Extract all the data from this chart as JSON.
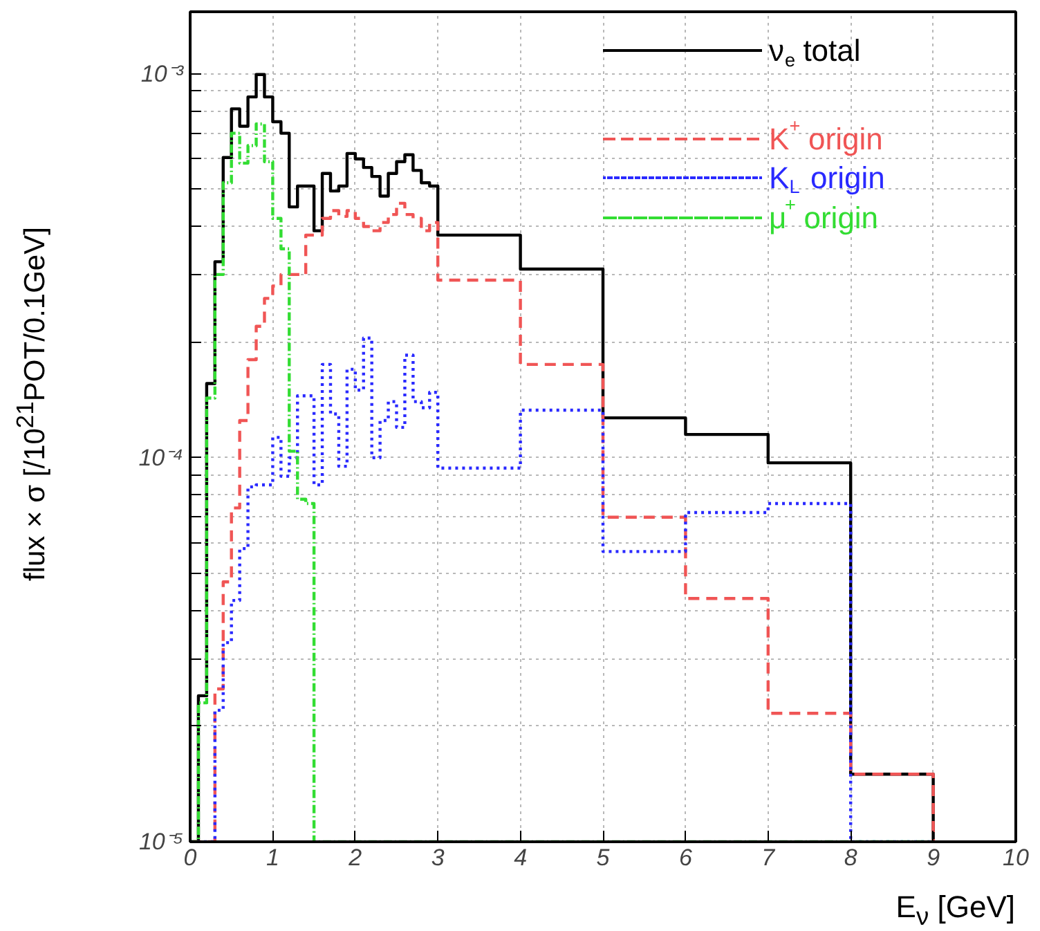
{
  "chart_data": {
    "type": "histogram",
    "xlabel": "E$_{ν}$ [GeV]",
    "ylabel": "flux × σ [/10$^{21}$POT/0.1GeV]",
    "bins": [
      0,
      0.1,
      0.2,
      0.3,
      0.4,
      0.5,
      0.6,
      0.7,
      0.8,
      0.9,
      1.0,
      1.1,
      1.2,
      1.3,
      1.4,
      1.5,
      1.6,
      1.7,
      1.8,
      1.9,
      2.0,
      2.1,
      2.2,
      2.3,
      2.4,
      2.5,
      2.6,
      2.7,
      2.8,
      2.9,
      3.0,
      4,
      5,
      6,
      7,
      8,
      9
    ],
    "series": [
      {
        "name": "ν$_{e}$ total",
        "color": "#000000",
        "line_style": "solid",
        "values": [
          null,
          2.4e-05,
          0.000156,
          0.000324,
          0.000605,
          0.00081,
          0.00073,
          0.00087,
          0.000995,
          0.00087,
          0.00075,
          0.0007,
          0.00045,
          0.00051,
          0.00051,
          0.00039,
          0.00055,
          0.000495,
          0.00051,
          0.00062,
          0.0006,
          0.00057,
          0.00054,
          0.00048,
          0.00055,
          0.00059,
          0.000615,
          0.00056,
          0.00052,
          0.00051,
          0.00038,
          0.00031,
          0.000127,
          0.000115,
          9.7e-05,
          1.5e-05
        ]
      },
      {
        "name": "K$^{+}$ origin",
        "color": "#f05555",
        "line_style": "dashed",
        "values": [
          null,
          null,
          null,
          2.5e-05,
          4.75e-05,
          7.4e-05,
          0.000125,
          0.00018,
          0.00022,
          0.00026,
          0.00028,
          0.0003,
          0.0003,
          0.0003,
          0.00038,
          0.00038,
          0.00042,
          0.00044,
          0.000425,
          0.00044,
          0.00042,
          0.0004,
          0.00039,
          0.00041,
          0.00043,
          0.00046,
          0.00043,
          0.00042,
          0.00039,
          0.00041,
          0.00029,
          0.000175,
          7e-05,
          4.3e-05,
          2.16e-05,
          1.5e-05
        ]
      },
      {
        "name": "K$_{L}$ origin",
        "color": "#2a2aff",
        "line_style": "dotted",
        "values": [
          null,
          null,
          null,
          2.2e-05,
          3.3e-05,
          4.25e-05,
          5.8e-05,
          8.4e-05,
          8.5e-05,
          8.5e-05,
          0.000113,
          8.95e-05,
          0.0001,
          0.000145,
          0.000145,
          8.5e-05,
          0.000175,
          0.00013,
          9.5e-05,
          0.00017,
          0.00015,
          0.000205,
          0.0001,
          0.000125,
          0.00014,
          0.00012,
          0.000185,
          0.00014,
          0.000135,
          0.000148,
          9.4e-05,
          0.000133,
          5.7e-05,
          7.2e-05,
          7.6e-05,
          null
        ]
      },
      {
        "name": "μ$^{+}$ origin",
        "color": "#33dd33",
        "line_style": "dashdot",
        "values": [
          null,
          2.3e-05,
          0.000143,
          0.0003,
          0.00052,
          0.0007,
          0.000585,
          0.00065,
          0.00074,
          0.00059,
          0.00042,
          0.00035,
          0.000104,
          7.8e-05,
          7.6e-05,
          null,
          null,
          null,
          null,
          null,
          null,
          null,
          null,
          null,
          null,
          null,
          null,
          null,
          null,
          null,
          null,
          null,
          null,
          null,
          null,
          null
        ]
      }
    ],
    "log": "y",
    "xlim": [
      0,
      10
    ],
    "xticks": [
      0,
      1,
      2,
      3,
      4,
      5,
      6,
      7,
      8,
      9,
      10
    ],
    "ylim": [
      1e-05,
      0.00145
    ],
    "yticks": [
      {
        "value": 1e-05,
        "label": "10⁻⁵"
      },
      {
        "value": 2e-05,
        "label": null
      },
      {
        "value": 3e-05,
        "label": null
      },
      {
        "value": 4e-05,
        "label": null
      },
      {
        "value": 5e-05,
        "label": null
      },
      {
        "value": 6e-05,
        "label": null
      },
      {
        "value": 7e-05,
        "label": null
      },
      {
        "value": 8e-05,
        "label": null
      },
      {
        "value": 9e-05,
        "label": null
      },
      {
        "value": 0.0001,
        "label": "10⁻⁴"
      },
      {
        "value": 0.0002,
        "label": null
      },
      {
        "value": 0.0003,
        "label": null
      },
      {
        "value": 0.0004,
        "label": null
      },
      {
        "value": 0.0005,
        "label": null
      },
      {
        "value": 0.0006,
        "label": null
      },
      {
        "value": 0.0007,
        "label": null
      },
      {
        "value": 0.0008,
        "label": null
      },
      {
        "value": 0.0009,
        "label": null
      },
      {
        "value": 0.001,
        "label": "10⁻³"
      }
    ],
    "grid": true,
    "legend": "top right"
  }
}
